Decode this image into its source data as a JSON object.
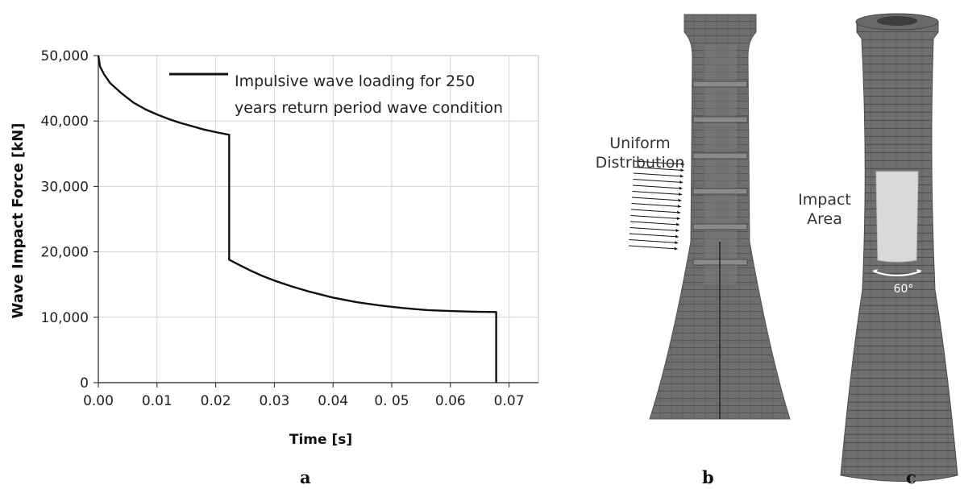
{
  "panels": {
    "a": "a",
    "b": "b",
    "c": "c"
  },
  "tower_b": {
    "label_line1": "Uniform",
    "label_line2": "Distribution"
  },
  "tower_c": {
    "label_line1": "Impact",
    "label_line2": "Area",
    "angle_label": "60°"
  },
  "colors": {
    "line": "#111111",
    "grid": "#d4d4d4",
    "tower_fill": "#6e6e6e",
    "tower_dark": "#4a4a4a",
    "impact_area": "#d9d9d9"
  },
  "chart_data": {
    "type": "line",
    "title": "",
    "xlabel": "Time [s]",
    "ylabel": "Wave Impact Force [kN]",
    "xlim": [
      0,
      0.075
    ],
    "ylim": [
      0,
      50000
    ],
    "x_ticks": [
      "0.00",
      "0.01",
      "0.02",
      "0.03",
      "0.04",
      "0. 05",
      "0.06",
      "0.07"
    ],
    "x_tick_values": [
      0,
      0.01,
      0.02,
      0.03,
      0.04,
      0.05,
      0.06,
      0.07
    ],
    "y_ticks": [
      "0",
      "10,000",
      "20,000",
      "30,000",
      "40,000",
      "50,000"
    ],
    "y_tick_values": [
      0,
      10000,
      20000,
      30000,
      40000,
      50000
    ],
    "grid": true,
    "legend_position": "top-right",
    "series": [
      {
        "name": "Impulsive wave loading for 250 years return period wave condition",
        "legend_line1": "Impulsive wave loading for 250",
        "legend_line2": "years return period wave condition",
        "x": [
          0,
          0.0003,
          0.001,
          0.002,
          0.004,
          0.006,
          0.008,
          0.01,
          0.012,
          0.014,
          0.016,
          0.018,
          0.02,
          0.0223,
          0.0223,
          0.024,
          0.026,
          0.028,
          0.03,
          0.033,
          0.036,
          0.04,
          0.044,
          0.048,
          0.052,
          0.056,
          0.06,
          0.064,
          0.0678,
          0.0678
        ],
        "y": [
          50000,
          48300,
          47100,
          45800,
          44200,
          42800,
          41800,
          41000,
          40300,
          39700,
          39200,
          38700,
          38300,
          37900,
          18800,
          18000,
          17100,
          16300,
          15600,
          14700,
          13900,
          13000,
          12300,
          11800,
          11400,
          11100,
          10950,
          10850,
          10800,
          0
        ]
      }
    ]
  }
}
